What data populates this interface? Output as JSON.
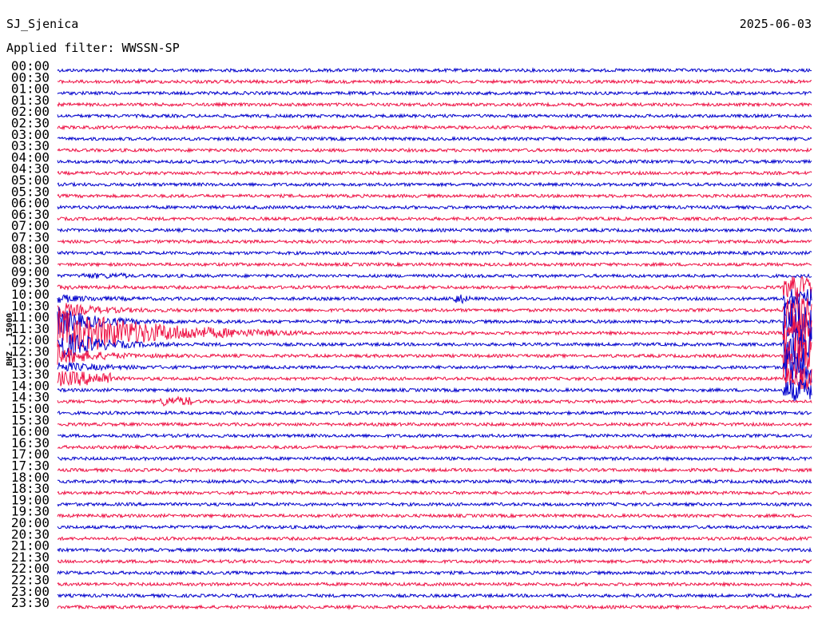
{
  "header": {
    "station": "SJ_Sjenica",
    "date": "2025-06-03",
    "filter": "Applied filter: WWSSN-SP"
  },
  "axis_label": "BHZ - 15000",
  "rows": [
    "00:00",
    "00:30",
    "01:00",
    "01:30",
    "02:00",
    "02:30",
    "03:00",
    "03:30",
    "04:00",
    "04:30",
    "05:00",
    "05:30",
    "06:00",
    "06:30",
    "07:00",
    "07:30",
    "08:00",
    "08:30",
    "09:00",
    "09:30",
    "10:00",
    "10:30",
    "11:00",
    "11:30",
    "12:00",
    "12:30",
    "13:00",
    "13:30",
    "14:00",
    "14:30",
    "15:00",
    "15:30",
    "16:00",
    "16:30",
    "17:00",
    "17:30",
    "18:00",
    "18:30",
    "19:00",
    "19:30",
    "20:00",
    "20:30",
    "21:00",
    "21:30",
    "22:00",
    "22:30",
    "23:00",
    "23:30"
  ]
}
